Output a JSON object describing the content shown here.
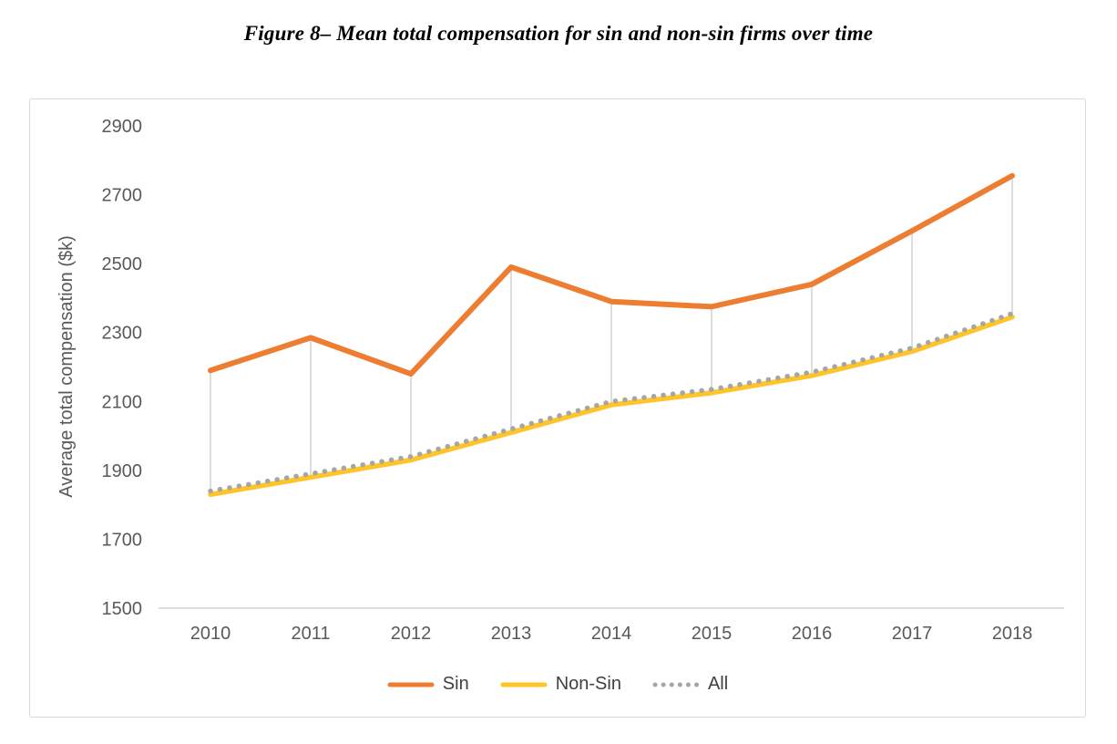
{
  "title": "Figure 8– Mean total compensation for sin and non-sin firms over time",
  "chart_data": {
    "type": "line",
    "categories": [
      "2010",
      "2011",
      "2012",
      "2013",
      "2014",
      "2015",
      "2016",
      "2017",
      "2018"
    ],
    "series": [
      {
        "name": "Sin",
        "color": "#ED7D31",
        "style": "solid",
        "values": [
          2190,
          2285,
          2180,
          2490,
          2390,
          2375,
          2440,
          2595,
          2755
        ]
      },
      {
        "name": "Non-Sin",
        "color": "#FFC428",
        "style": "solid",
        "values": [
          1830,
          1880,
          1930,
          2010,
          2090,
          2125,
          2175,
          2245,
          2345
        ]
      },
      {
        "name": "All",
        "color": "#A6A6A6",
        "style": "dotted",
        "values": [
          1840,
          1890,
          1940,
          2020,
          2100,
          2135,
          2185,
          2255,
          2355
        ]
      }
    ],
    "title": "",
    "xlabel": "",
    "ylabel": "Average total compensation ($k)",
    "ylim": [
      1500,
      2900
    ],
    "yticks": [
      1500,
      1700,
      1900,
      2100,
      2300,
      2500,
      2700,
      2900
    ],
    "grid": false,
    "legend_position": "bottom",
    "high_low_lines": true
  },
  "style_colors": {
    "axis_text": "#595959",
    "axis_line": "#d0d0d0",
    "dropline": "#d6d6d6",
    "chart_border": "#d9d9d9",
    "legend_text": "#404040"
  }
}
